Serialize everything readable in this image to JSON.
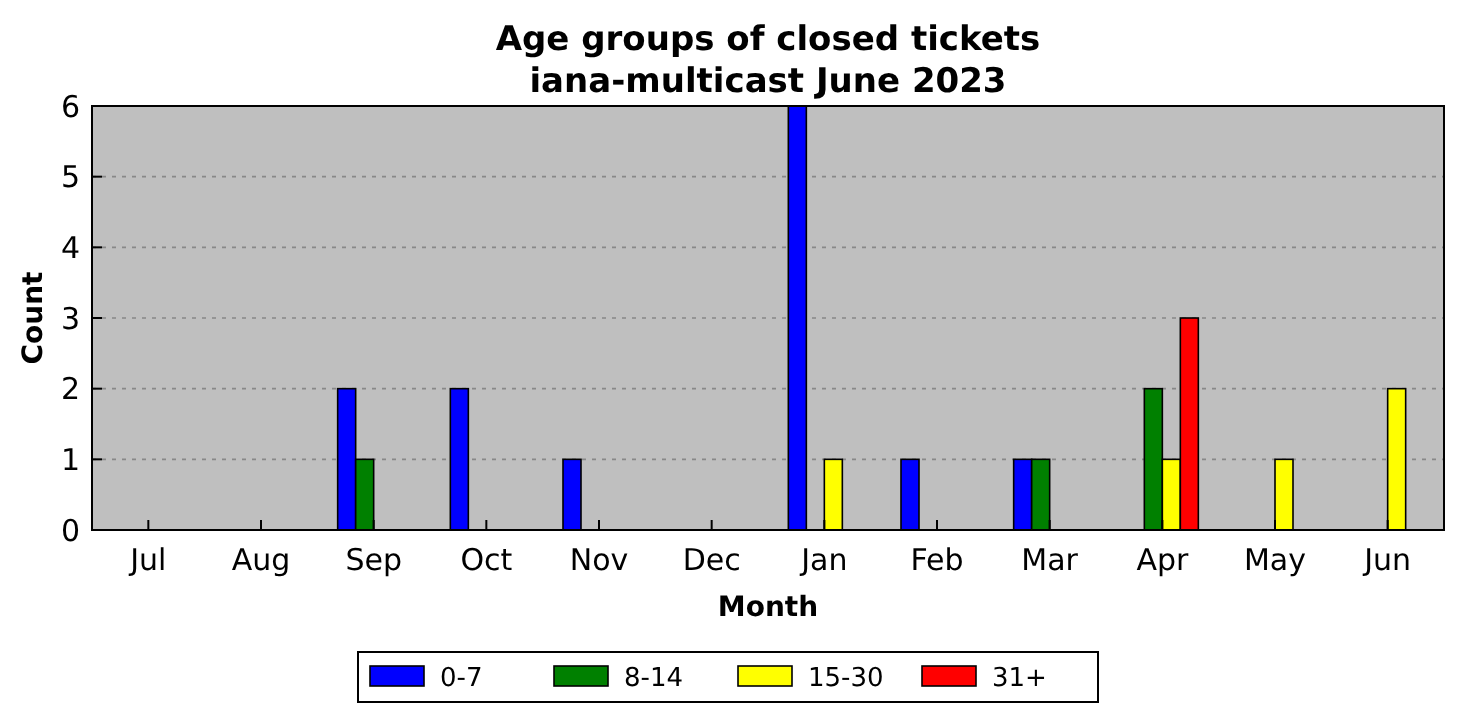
{
  "chart_data": {
    "type": "bar",
    "title": "Age groups of closed tickets\niana-multicast June 2023",
    "xlabel": "Month",
    "ylabel": "Count",
    "categories": [
      "Jul",
      "Aug",
      "Sep",
      "Oct",
      "Nov",
      "Dec",
      "Jan",
      "Feb",
      "Mar",
      "Apr",
      "May",
      "Jun"
    ],
    "series": [
      {
        "name": "0-7",
        "color": "#0000ff",
        "values": [
          0,
          0,
          2,
          2,
          1,
          0,
          6,
          1,
          1,
          0,
          0,
          0
        ]
      },
      {
        "name": "8-14",
        "color": "#008000",
        "values": [
          0,
          0,
          1,
          0,
          0,
          0,
          0,
          0,
          1,
          2,
          0,
          0
        ]
      },
      {
        "name": "15-30",
        "color": "#ffff00",
        "values": [
          0,
          0,
          0,
          0,
          0,
          0,
          1,
          0,
          0,
          1,
          1,
          2
        ]
      },
      {
        "name": "31+",
        "color": "#ff0000",
        "values": [
          0,
          0,
          0,
          0,
          0,
          0,
          0,
          0,
          0,
          3,
          0,
          0
        ]
      }
    ],
    "ylim": [
      0,
      6
    ],
    "yticks": [
      0,
      1,
      2,
      3,
      4,
      5,
      6
    ],
    "grid": "y",
    "legend": "bottom"
  }
}
